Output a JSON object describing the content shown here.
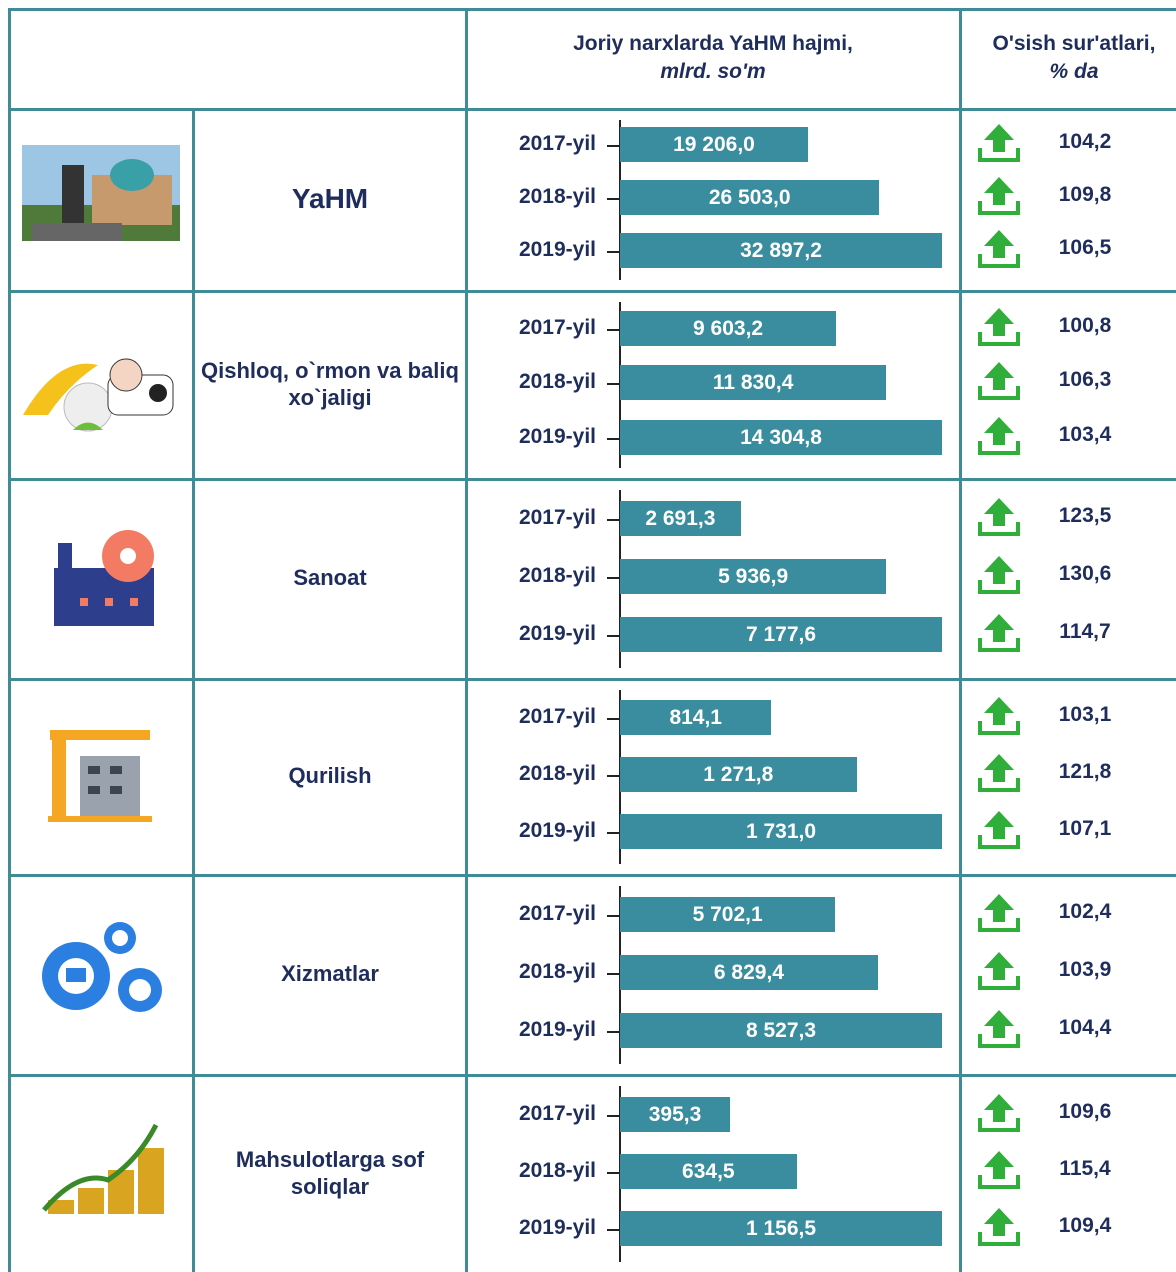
{
  "header": {
    "volume_title": "Joriy narxlarda YaHM hajmi,",
    "volume_unit": "mlrd. so'm",
    "growth_title": "O'sish sur'atlari,",
    "growth_unit": "% da"
  },
  "rows": [
    {
      "label": "YaHM",
      "years": [
        "2017-yil",
        "2018-yil",
        "2019-yil"
      ],
      "values": [
        19206.0,
        26503.0,
        32897.2
      ],
      "value_labels": [
        "19 206,0",
        "26 503,0",
        "32 897,2"
      ],
      "growth": [
        "104,2",
        "109,8",
        "106,5"
      ]
    },
    {
      "label": "Qishloq, o`rmon va baliq xo`jaligi",
      "years": [
        "2017-yil",
        "2018-yil",
        "2019-yil"
      ],
      "values": [
        9603.2,
        11830.4,
        14304.8
      ],
      "value_labels": [
        "9 603,2",
        "11 830,4",
        "14 304,8"
      ],
      "growth": [
        "100,8",
        "106,3",
        "103,4"
      ]
    },
    {
      "label": "Sanoat",
      "years": [
        "2017-yil",
        "2018-yil",
        "2019-yil"
      ],
      "values": [
        2691.3,
        5936.9,
        7177.6
      ],
      "value_labels": [
        "2 691,3",
        "5 936,9",
        "7 177,6"
      ],
      "growth": [
        "123,5",
        "130,6",
        "114,7"
      ]
    },
    {
      "label": "Qurilish",
      "years": [
        "2017-yil",
        "2018-yil",
        "2019-yil"
      ],
      "values": [
        814.1,
        1271.8,
        1731.0
      ],
      "value_labels": [
        "814,1",
        "1 271,8",
        "1 731,0"
      ],
      "growth": [
        "103,1",
        "121,8",
        "107,1"
      ]
    },
    {
      "label": "Xizmatlar",
      "years": [
        "2017-yil",
        "2018-yil",
        "2019-yil"
      ],
      "values": [
        5702.1,
        6829.4,
        8527.3
      ],
      "value_labels": [
        "5 702,1",
        "6 829,4",
        "8 527,3"
      ],
      "growth": [
        "102,4",
        "103,9",
        "104,4"
      ]
    },
    {
      "label": "Mahsulotlarga sof soliqlar",
      "years": [
        "2017-yil",
        "2018-yil",
        "2019-yil"
      ],
      "values": [
        395.3,
        634.5,
        1156.5
      ],
      "value_labels": [
        "395,3",
        "634,5",
        "1 156,5"
      ],
      "growth": [
        "109,6",
        "115,4",
        "109,4"
      ]
    }
  ]
}
